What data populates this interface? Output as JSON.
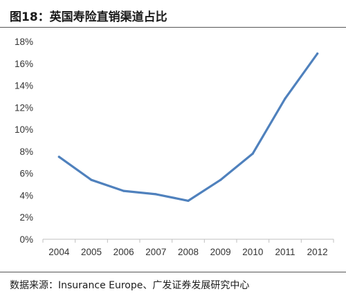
{
  "figure": {
    "title": "图18：英国寿险直销渠道占比",
    "source": "数据来源：Insurance Europe、广发证券发展研究中心"
  },
  "chart_data": {
    "type": "line",
    "title": "图18：英国寿险直销渠道占比",
    "xlabel": "",
    "ylabel": "",
    "categories": [
      "2004",
      "2005",
      "2006",
      "2007",
      "2008",
      "2009",
      "2010",
      "2011",
      "2012"
    ],
    "values": [
      7.5,
      5.4,
      4.4,
      4.1,
      3.5,
      5.4,
      7.8,
      12.8,
      16.9
    ],
    "ylim": [
      0,
      18
    ],
    "y_ticks": [
      "0%",
      "2%",
      "4%",
      "6%",
      "8%",
      "10%",
      "12%",
      "14%",
      "16%",
      "18%"
    ],
    "y_tick_values": [
      0,
      2,
      4,
      6,
      8,
      10,
      12,
      14,
      16,
      18
    ],
    "line_color": "#4F81BD",
    "grid": false,
    "legend": "none"
  }
}
